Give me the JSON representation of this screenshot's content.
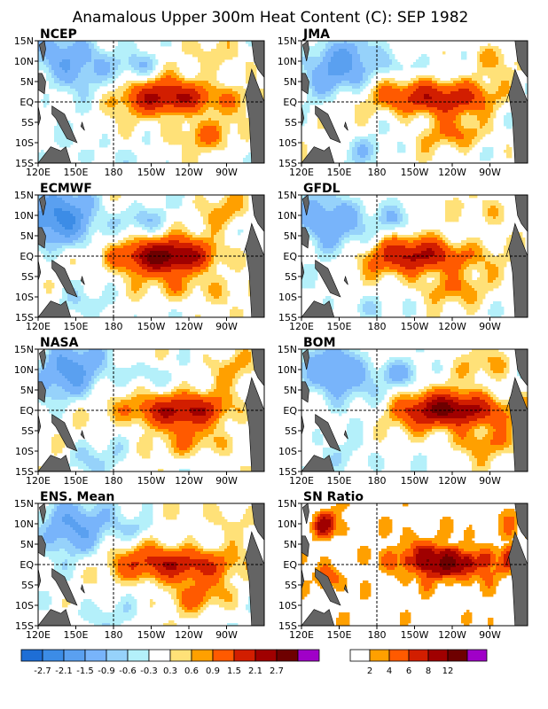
{
  "figure": {
    "title": "Anamalous Upper 300m Heat Content (C): SEP 1982"
  },
  "chart_data": [
    {
      "type": "heatmap",
      "title": "NCEP",
      "x_ticks": [
        "120E",
        "150E",
        "180",
        "150W",
        "120W",
        "90W"
      ],
      "y_ticks": [
        "15N",
        "10N",
        "5N",
        "EQ",
        "5S",
        "10S",
        "15S"
      ],
      "x_range": [
        120,
        300
      ],
      "y_range": [
        -15,
        15
      ],
      "features": {
        "warm_center": [
          228,
          1
        ],
        "warm_peak": 2.1,
        "cold_center": [
          145,
          10
        ],
        "cold_min": -1.5
      }
    },
    {
      "type": "heatmap",
      "title": "JMA",
      "x_ticks": [
        "120E",
        "150E",
        "180",
        "150W",
        "120W",
        "90W"
      ],
      "y_ticks": [
        "15N",
        "10N",
        "5N",
        "EQ",
        "5S",
        "10S",
        "15S"
      ],
      "x_range": [
        120,
        300
      ],
      "y_range": [
        -15,
        15
      ],
      "features": {
        "warm_center": [
          225,
          1
        ],
        "warm_peak": 2.1,
        "cold_center": [
          150,
          9
        ],
        "cold_min": -1.5
      }
    },
    {
      "type": "heatmap",
      "title": "ECMWF",
      "x_ticks": [
        "120E",
        "150E",
        "180",
        "150W",
        "120W",
        "90W"
      ],
      "y_ticks": [
        "15N",
        "10N",
        "5N",
        "EQ",
        "5S",
        "10S",
        "15S"
      ],
      "x_range": [
        120,
        300
      ],
      "y_range": [
        -15,
        15
      ],
      "features": {
        "warm_center": [
          220,
          0
        ],
        "warm_peak": 2.7,
        "cold_center": [
          140,
          9
        ],
        "cold_min": -2.1
      }
    },
    {
      "type": "heatmap",
      "title": "GFDL",
      "x_ticks": [
        "120E",
        "150E",
        "180",
        "150W",
        "120W",
        "90W"
      ],
      "y_ticks": [
        "15N",
        "10N",
        "5N",
        "EQ",
        "5S",
        "10S",
        "15S"
      ],
      "x_range": [
        120,
        300
      ],
      "y_range": [
        -15,
        15
      ],
      "features": {
        "warm_center": [
          215,
          0
        ],
        "warm_peak": 2.1,
        "cold_center": [
          140,
          9
        ],
        "cold_min": -1.5
      }
    },
    {
      "type": "heatmap",
      "title": "NASA",
      "x_ticks": [
        "120E",
        "150E",
        "180",
        "150W",
        "120W",
        "90W"
      ],
      "y_ticks": [
        "15N",
        "10N",
        "5N",
        "EQ",
        "5S",
        "10S",
        "15S"
      ],
      "x_range": [
        120,
        300
      ],
      "y_range": [
        -15,
        15
      ],
      "features": {
        "warm_center": [
          230,
          0
        ],
        "warm_peak": 2.1,
        "cold_center": [
          145,
          10
        ],
        "cold_min": -1.5
      }
    },
    {
      "type": "heatmap",
      "title": "BOM",
      "x_ticks": [
        "120E",
        "150E",
        "180",
        "150W",
        "120W",
        "90W"
      ],
      "y_ticks": [
        "15N",
        "10N",
        "5N",
        "EQ",
        "5S",
        "10S",
        "15S"
      ],
      "x_range": [
        120,
        300
      ],
      "y_range": [
        -15,
        15
      ],
      "features": {
        "warm_center": [
          240,
          0
        ],
        "warm_peak": 2.7,
        "cold_center": [
          150,
          9
        ],
        "cold_min": -1.5
      }
    },
    {
      "type": "heatmap",
      "title": "ENS. Mean",
      "x_ticks": [
        "120E",
        "150E",
        "180",
        "150W",
        "120W",
        "90W"
      ],
      "y_ticks": [
        "15N",
        "10N",
        "5N",
        "EQ",
        "5S",
        "10S",
        "15S"
      ],
      "x_range": [
        120,
        300
      ],
      "y_range": [
        -15,
        15
      ],
      "features": {
        "warm_center": [
          228,
          0
        ],
        "warm_peak": 2.1,
        "cold_center": [
          145,
          10
        ],
        "cold_min": -1.5
      }
    },
    {
      "type": "heatmap",
      "title": "SN Ratio",
      "x_ticks": [
        "120E",
        "150E",
        "180",
        "150W",
        "120W",
        "90W"
      ],
      "y_ticks": [
        "15N",
        "10N",
        "5N",
        "EQ",
        "5S",
        "10S",
        "15S"
      ],
      "x_range": [
        120,
        300
      ],
      "y_range": [
        -15,
        15
      ],
      "features": {
        "high_ratio_center": [
          240,
          0
        ],
        "high_ratio_max": 12
      }
    }
  ],
  "legend_anomaly": {
    "labels": [
      "-2.7",
      "-2.1",
      "-1.5",
      "-0.9",
      "-0.6",
      "-0.3",
      "0.3",
      "0.6",
      "0.9",
      "1.5",
      "2.1",
      "2.7"
    ],
    "colors": [
      "#1e6ed6",
      "#3c8ce6",
      "#5aa0f0",
      "#78b4fa",
      "#96d2fa",
      "#b4f0fa",
      "#ffffff",
      "#ffe178",
      "#ffa000",
      "#ff5a00",
      "#d21e00",
      "#a00000",
      "#6e0000",
      "#a000c8"
    ]
  },
  "legend_snr": {
    "labels": [
      "2",
      "4",
      "6",
      "8",
      "12"
    ],
    "colors": [
      "#ffffff",
      "#ffa000",
      "#ff5a00",
      "#d21e00",
      "#a00000",
      "#6e0000",
      "#a000c8"
    ]
  }
}
